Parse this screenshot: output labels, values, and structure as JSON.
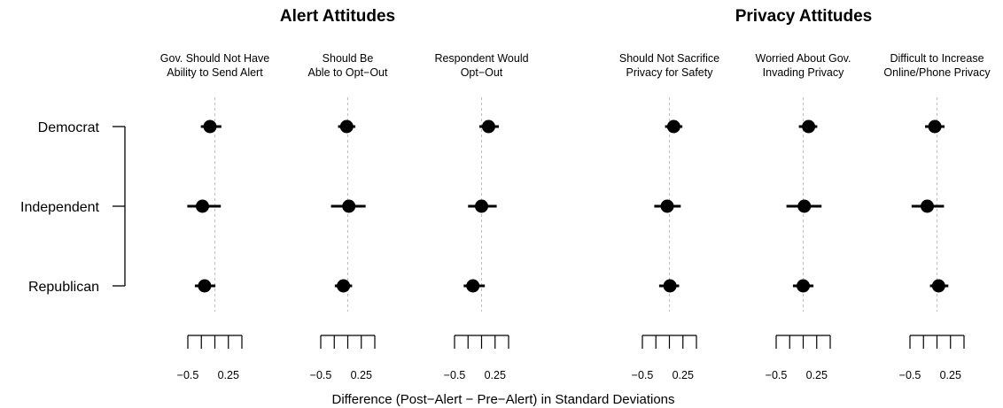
{
  "chart_data": {
    "type": "dot-whisker",
    "groups": [
      {
        "title": "Alert Attitudes",
        "panels": [
          0,
          1,
          2
        ]
      },
      {
        "title": "Privacy Attitudes",
        "panels": [
          3,
          4,
          5
        ]
      }
    ],
    "rows": [
      "Democrat",
      "Independent",
      "Republican"
    ],
    "xlabel": "Difference (Post−Alert − Pre−Alert) in Standard Deviations",
    "x_range": [
      -0.5,
      0.5
    ],
    "ticks": [
      -0.5,
      -0.25,
      0,
      0.25,
      0.5
    ],
    "tick_labels": [
      {
        "value": -0.5,
        "label": "−0.5"
      },
      {
        "value": 0.25,
        "label": "0.25"
      }
    ],
    "reference_line": 0,
    "panels": [
      {
        "title_lines": [
          "Gov. Should Not Have",
          "Ability to Send Alert"
        ],
        "points": [
          {
            "estimate": -0.09,
            "lower": -0.26,
            "upper": 0.12
          },
          {
            "estimate": -0.23,
            "lower": -0.51,
            "upper": 0.11
          },
          {
            "estimate": -0.19,
            "lower": -0.37,
            "upper": 0.01
          }
        ]
      },
      {
        "title_lines": [
          "Should Be",
          "Able to Opt−Out"
        ],
        "points": [
          {
            "estimate": -0.02,
            "lower": -0.18,
            "upper": 0.14
          },
          {
            "estimate": 0.02,
            "lower": -0.31,
            "upper": 0.33
          },
          {
            "estimate": -0.08,
            "lower": -0.24,
            "upper": 0.08
          }
        ]
      },
      {
        "title_lines": [
          "Respondent Would",
          "Opt−Out"
        ],
        "points": [
          {
            "estimate": 0.13,
            "lower": -0.04,
            "upper": 0.32
          },
          {
            "estimate": 0.0,
            "lower": -0.25,
            "upper": 0.28
          },
          {
            "estimate": -0.16,
            "lower": -0.33,
            "upper": 0.06
          }
        ]
      },
      {
        "title_lines": [
          "Should Not Sacrifice",
          "Privacy for Safety"
        ],
        "points": [
          {
            "estimate": 0.08,
            "lower": -0.08,
            "upper": 0.24
          },
          {
            "estimate": -0.04,
            "lower": -0.28,
            "upper": 0.21
          },
          {
            "estimate": 0.01,
            "lower": -0.19,
            "upper": 0.18
          }
        ]
      },
      {
        "title_lines": [
          "Worried About Gov.",
          "Invading Privacy"
        ],
        "points": [
          {
            "estimate": 0.1,
            "lower": -0.08,
            "upper": 0.26
          },
          {
            "estimate": 0.02,
            "lower": -0.31,
            "upper": 0.34
          },
          {
            "estimate": 0.0,
            "lower": -0.19,
            "upper": 0.19
          }
        ]
      },
      {
        "title_lines": [
          "Difficult to Increase",
          "Online/Phone Privacy"
        ],
        "points": [
          {
            "estimate": -0.04,
            "lower": -0.22,
            "upper": 0.14
          },
          {
            "estimate": -0.18,
            "lower": -0.47,
            "upper": 0.13
          },
          {
            "estimate": 0.03,
            "lower": -0.13,
            "upper": 0.21
          }
        ]
      }
    ]
  }
}
